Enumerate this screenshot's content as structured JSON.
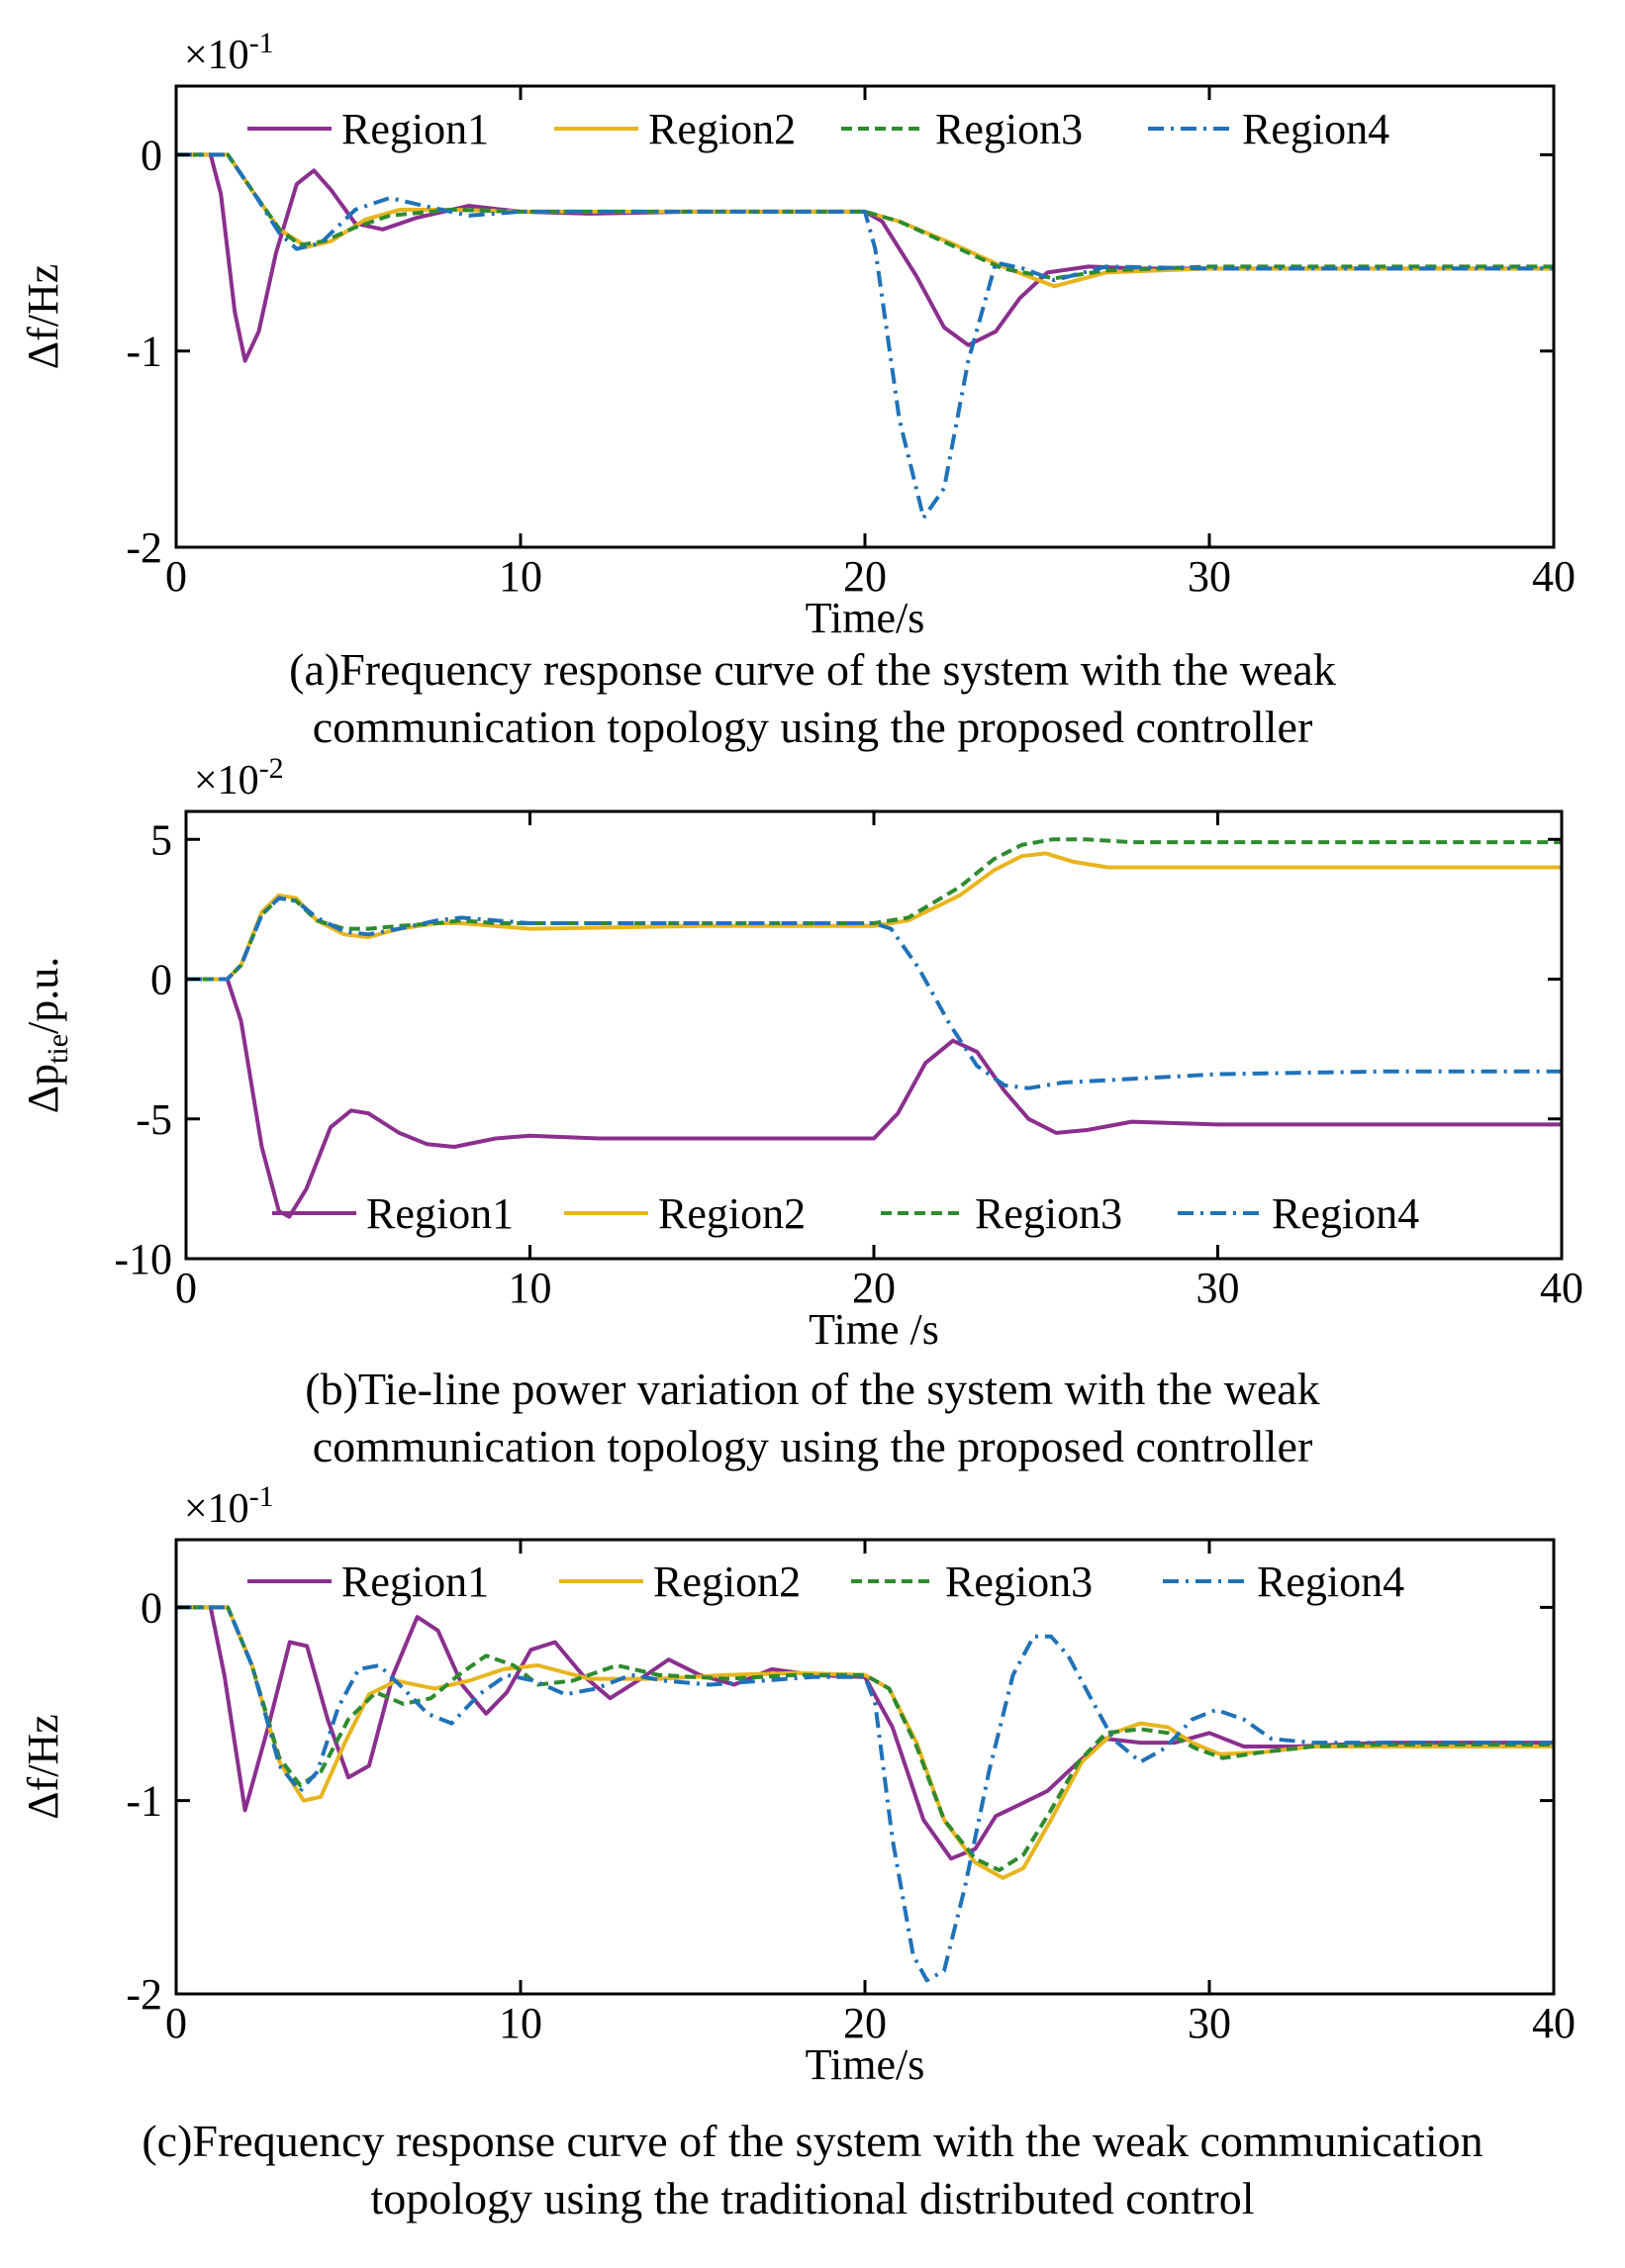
{
  "colors": {
    "Region1": "#8B2F8E",
    "Region2": "#E8B51E",
    "Region3": "#2E8B2E",
    "Region4": "#1F72B8",
    "axis": "#000000"
  },
  "chart_data": [
    {
      "type": "line",
      "id": "a",
      "exponent_label": "×10",
      "exponent_power": "-1",
      "xlabel": "Time/s",
      "ylabel": "Δf/Hz",
      "xlim": [
        0,
        40
      ],
      "ylim": [
        -2.0,
        0.35
      ],
      "xticks": [
        0,
        10,
        20,
        30,
        40
      ],
      "xtick_labels": [
        "0",
        "10",
        "20",
        "30",
        "40"
      ],
      "yticks": [
        0,
        -1,
        -2
      ],
      "ytick_labels": [
        "0",
        "-1",
        "-2"
      ],
      "legend": [
        "Region1",
        "Region2",
        "Region3",
        "Region4"
      ],
      "legend_position": "top",
      "series": [
        {
          "name": "Region1",
          "style": "solid",
          "x": [
            0,
            1,
            1.3,
            1.7,
            2.0,
            2.4,
            2.9,
            3.5,
            4.0,
            4.5,
            5.2,
            6.0,
            7.0,
            8.5,
            10,
            12,
            15,
            20,
            20.5,
            21.5,
            22.3,
            23.0,
            23.8,
            24.5,
            25.3,
            26.5,
            28,
            30,
            40
          ],
          "y": [
            0,
            0,
            -0.2,
            -0.8,
            -1.05,
            -0.9,
            -0.5,
            -0.15,
            -0.08,
            -0.18,
            -0.35,
            -0.38,
            -0.32,
            -0.26,
            -0.29,
            -0.3,
            -0.29,
            -0.29,
            -0.34,
            -0.62,
            -0.88,
            -0.97,
            -0.9,
            -0.73,
            -0.6,
            -0.57,
            -0.58,
            -0.58,
            -0.58
          ]
        },
        {
          "name": "Region2",
          "style": "solid",
          "x": [
            0,
            1.5,
            2.2,
            3.0,
            3.8,
            4.5,
            5.5,
            6.5,
            8,
            10,
            15,
            20,
            21,
            22.5,
            24,
            25.5,
            27,
            30,
            40
          ],
          "y": [
            0,
            0,
            -0.18,
            -0.38,
            -0.47,
            -0.44,
            -0.33,
            -0.28,
            -0.28,
            -0.29,
            -0.29,
            -0.29,
            -0.34,
            -0.45,
            -0.57,
            -0.67,
            -0.6,
            -0.58,
            -0.58
          ]
        },
        {
          "name": "Region3",
          "style": "dashed",
          "x": [
            0,
            1.5,
            2.2,
            3.0,
            3.6,
            4.3,
            5.2,
            6.2,
            8,
            10,
            15,
            20,
            21,
            22.5,
            24,
            25.5,
            27,
            30,
            40
          ],
          "y": [
            0,
            0,
            -0.18,
            -0.38,
            -0.46,
            -0.44,
            -0.37,
            -0.31,
            -0.28,
            -0.29,
            -0.29,
            -0.29,
            -0.34,
            -0.46,
            -0.58,
            -0.63,
            -0.59,
            -0.57,
            -0.57
          ]
        },
        {
          "name": "Region4",
          "style": "dashdot",
          "x": [
            0,
            1.5,
            2.2,
            3.0,
            3.5,
            4.2,
            5.2,
            6.2,
            7.2,
            8.5,
            10,
            15,
            20,
            20.3,
            21.0,
            21.7,
            22.3,
            23.0,
            23.8,
            24.6,
            25.5,
            27,
            30,
            40
          ],
          "y": [
            0,
            0,
            -0.18,
            -0.4,
            -0.48,
            -0.45,
            -0.28,
            -0.22,
            -0.26,
            -0.31,
            -0.29,
            -0.29,
            -0.29,
            -0.48,
            -1.35,
            -1.85,
            -1.7,
            -1.05,
            -0.55,
            -0.58,
            -0.64,
            -0.57,
            -0.58,
            -0.58
          ]
        }
      ]
    },
    {
      "type": "line",
      "id": "b",
      "exponent_label": "×10",
      "exponent_power": "-2",
      "xlabel": "Time /s",
      "ylabel_main": "Δp",
      "ylabel_sub": "tie",
      "ylabel_tail": "/p.u.",
      "xlim": [
        0,
        40
      ],
      "ylim": [
        -10,
        6
      ],
      "xticks": [
        0,
        10,
        20,
        30,
        40
      ],
      "xtick_labels": [
        "0",
        "10",
        "20",
        "30",
        "40"
      ],
      "yticks": [
        5,
        0,
        -5,
        -10
      ],
      "ytick_labels": [
        "5",
        "0",
        "-5",
        "-10"
      ],
      "legend": [
        "Region1",
        "Region2",
        "Region3",
        "Region4"
      ],
      "legend_position": "bottom",
      "series": [
        {
          "name": "Region1",
          "style": "solid",
          "x": [
            0,
            1.2,
            1.6,
            2.2,
            2.7,
            3.0,
            3.5,
            4.2,
            4.8,
            5.3,
            6.2,
            7.0,
            7.8,
            9,
            10,
            12,
            15,
            20,
            20.7,
            21.5,
            22.3,
            23.0,
            23.8,
            24.5,
            25.3,
            26.2,
            27.5,
            30,
            35,
            40
          ],
          "y": [
            0,
            0,
            -1.5,
            -6.0,
            -8.3,
            -8.5,
            -7.5,
            -5.3,
            -4.7,
            -4.8,
            -5.5,
            -5.9,
            -6.0,
            -5.7,
            -5.6,
            -5.7,
            -5.7,
            -5.7,
            -4.8,
            -3.0,
            -2.2,
            -2.6,
            -4.0,
            -5.0,
            -5.5,
            -5.4,
            -5.1,
            -5.2,
            -5.2,
            -5.2
          ]
        },
        {
          "name": "Region2",
          "style": "solid",
          "x": [
            0,
            1.2,
            1.6,
            2.2,
            2.7,
            3.2,
            3.8,
            4.6,
            5.3,
            6.2,
            7.3,
            8.0,
            9.0,
            10,
            15,
            20,
            21,
            22.5,
            23.5,
            24.3,
            25.0,
            25.8,
            26.8,
            28,
            30,
            35,
            40
          ],
          "y": [
            0,
            0,
            0.5,
            2.4,
            3.0,
            2.9,
            2.1,
            1.6,
            1.5,
            1.8,
            2.0,
            2.0,
            1.9,
            1.8,
            1.9,
            1.9,
            2.1,
            3.0,
            3.9,
            4.4,
            4.5,
            4.2,
            4.0,
            4.0,
            4.0,
            4.0,
            4.0
          ]
        },
        {
          "name": "Region3",
          "style": "dashed",
          "x": [
            0,
            1.2,
            1.6,
            2.2,
            2.7,
            3.2,
            3.8,
            4.6,
            5.3,
            6.2,
            7.3,
            8.0,
            9.0,
            10,
            15,
            20,
            21,
            22.5,
            23.5,
            24.3,
            25.2,
            26.2,
            27.5,
            30,
            35,
            40
          ],
          "y": [
            0,
            0,
            0.5,
            2.3,
            2.9,
            2.8,
            2.1,
            1.8,
            1.8,
            1.9,
            2.0,
            2.1,
            2.0,
            2.0,
            2.0,
            2.0,
            2.2,
            3.3,
            4.3,
            4.8,
            5.0,
            5.0,
            4.9,
            4.9,
            4.9,
            4.9
          ]
        },
        {
          "name": "Region4",
          "style": "dashdot",
          "x": [
            0,
            1.2,
            1.6,
            2.2,
            2.7,
            3.2,
            3.8,
            4.6,
            5.3,
            6.2,
            7.3,
            8.0,
            9.0,
            10,
            15,
            20,
            20.5,
            21.3,
            22.2,
            23.0,
            23.8,
            24.5,
            25.5,
            27,
            30,
            35,
            40
          ],
          "y": [
            0,
            0,
            0.5,
            2.3,
            2.9,
            2.8,
            2.2,
            1.7,
            1.6,
            1.8,
            2.1,
            2.2,
            2.1,
            2.0,
            2.0,
            2.0,
            1.8,
            0.4,
            -1.6,
            -3.1,
            -3.8,
            -3.9,
            -3.7,
            -3.6,
            -3.4,
            -3.3,
            -3.3
          ]
        }
      ]
    },
    {
      "type": "line",
      "id": "c",
      "exponent_label": "×10",
      "exponent_power": "-1",
      "xlabel": "Time/s",
      "ylabel": "Δf/Hz",
      "xlim": [
        0,
        40
      ],
      "ylim": [
        -2.0,
        0.35
      ],
      "xticks": [
        0,
        10,
        20,
        30,
        40
      ],
      "xtick_labels": [
        "0",
        "10",
        "20",
        "30",
        "40"
      ],
      "yticks": [
        0,
        -1,
        -2
      ],
      "ytick_labels": [
        "0",
        "-1",
        "-2"
      ],
      "legend": [
        "Region1",
        "Region2",
        "Region3",
        "Region4"
      ],
      "legend_position": "top",
      "series": [
        {
          "name": "Region1",
          "style": "solid",
          "x": [
            0,
            1.0,
            1.4,
            2.0,
            2.7,
            3.3,
            3.8,
            4.4,
            5.0,
            5.6,
            6.3,
            7.0,
            7.6,
            8.3,
            9.0,
            9.6,
            10.3,
            11.0,
            11.8,
            12.6,
            13.4,
            14.3,
            15.2,
            16.2,
            17.3,
            18.5,
            20,
            20.8,
            21.7,
            22.5,
            23.2,
            23.8,
            24.5,
            25.3,
            26.2,
            27.0,
            28.0,
            29,
            30,
            31,
            32.5,
            35,
            40
          ],
          "y": [
            0,
            0,
            -0.35,
            -1.05,
            -0.6,
            -0.18,
            -0.2,
            -0.58,
            -0.88,
            -0.82,
            -0.35,
            -0.05,
            -0.12,
            -0.4,
            -0.55,
            -0.44,
            -0.22,
            -0.18,
            -0.35,
            -0.47,
            -0.38,
            -0.27,
            -0.35,
            -0.4,
            -0.32,
            -0.35,
            -0.36,
            -0.62,
            -1.1,
            -1.3,
            -1.25,
            -1.08,
            -1.02,
            -0.95,
            -0.8,
            -0.68,
            -0.7,
            -0.7,
            -0.65,
            -0.72,
            -0.72,
            -0.7,
            -0.7
          ]
        },
        {
          "name": "Region2",
          "style": "solid",
          "x": [
            0,
            1.5,
            2.2,
            3.0,
            3.7,
            4.2,
            4.9,
            5.6,
            6.4,
            7.5,
            8.5,
            9.5,
            10.5,
            12,
            14,
            16,
            18,
            20,
            20.7,
            21.5,
            22.3,
            23.2,
            24.0,
            24.6,
            25.4,
            26.3,
            27.2,
            28.0,
            28.8,
            29.5,
            30.3,
            31.5,
            33,
            35,
            40
          ],
          "y": [
            0,
            0,
            -0.3,
            -0.8,
            -1.0,
            -0.98,
            -0.7,
            -0.45,
            -0.38,
            -0.42,
            -0.38,
            -0.32,
            -0.3,
            -0.37,
            -0.37,
            -0.35,
            -0.34,
            -0.35,
            -0.42,
            -0.7,
            -1.1,
            -1.32,
            -1.4,
            -1.35,
            -1.1,
            -0.8,
            -0.65,
            -0.6,
            -0.62,
            -0.7,
            -0.76,
            -0.75,
            -0.72,
            -0.72,
            -0.72
          ]
        },
        {
          "name": "Region3",
          "style": "dashed",
          "x": [
            0,
            1.5,
            2.2,
            3.0,
            3.6,
            4.2,
            5.0,
            5.8,
            6.6,
            7.4,
            8.2,
            9.0,
            9.8,
            10.5,
            11.5,
            12.8,
            14,
            16,
            18,
            20,
            20.7,
            21.5,
            22.3,
            23.2,
            23.9,
            24.6,
            25.4,
            26.2,
            27.0,
            28.0,
            28.8,
            29.6,
            30.4,
            31.5,
            33,
            35,
            40
          ],
          "y": [
            0,
            0,
            -0.3,
            -0.78,
            -0.92,
            -0.85,
            -0.58,
            -0.44,
            -0.5,
            -0.47,
            -0.35,
            -0.25,
            -0.3,
            -0.4,
            -0.38,
            -0.3,
            -0.35,
            -0.37,
            -0.35,
            -0.35,
            -0.42,
            -0.72,
            -1.1,
            -1.3,
            -1.36,
            -1.28,
            -1.05,
            -0.8,
            -0.65,
            -0.63,
            -0.65,
            -0.73,
            -0.78,
            -0.75,
            -0.72,
            -0.71,
            -0.71
          ]
        },
        {
          "name": "Region4",
          "style": "dashdot",
          "x": [
            0,
            1.5,
            2.2,
            3.0,
            3.6,
            4.1,
            4.7,
            5.3,
            5.9,
            6.6,
            7.3,
            8.0,
            8.8,
            9.6,
            10.4,
            11.3,
            12.2,
            13.2,
            14.2,
            15.5,
            17,
            18.5,
            20,
            20.3,
            20.8,
            21.4,
            21.8,
            22.3,
            22.9,
            23.6,
            24.3,
            24.9,
            25.4,
            25.9,
            26.5,
            27.2,
            28.0,
            28.7,
            29.5,
            30.2,
            31.0,
            31.8,
            33,
            35,
            40
          ],
          "y": [
            0,
            0,
            -0.3,
            -0.82,
            -0.95,
            -0.85,
            -0.52,
            -0.32,
            -0.3,
            -0.42,
            -0.55,
            -0.6,
            -0.45,
            -0.35,
            -0.38,
            -0.45,
            -0.42,
            -0.35,
            -0.38,
            -0.4,
            -0.38,
            -0.36,
            -0.36,
            -0.5,
            -1.2,
            -1.8,
            -1.93,
            -1.88,
            -1.45,
            -0.85,
            -0.35,
            -0.15,
            -0.15,
            -0.25,
            -0.45,
            -0.68,
            -0.8,
            -0.73,
            -0.58,
            -0.53,
            -0.58,
            -0.68,
            -0.7,
            -0.7,
            -0.7
          ]
        }
      ]
    }
  ],
  "captions": [
    {
      "line1": "(a)Frequency response curve of the system with the weak",
      "line2": "communication topology using the proposed controller"
    },
    {
      "line1": "(b)Tie-line power variation of the system with the weak",
      "line2": "communication topology using the proposed controller"
    },
    {
      "line1": "(c)Frequency response curve of the system with the weak communication",
      "line2": "topology using the traditional distributed control"
    }
  ]
}
